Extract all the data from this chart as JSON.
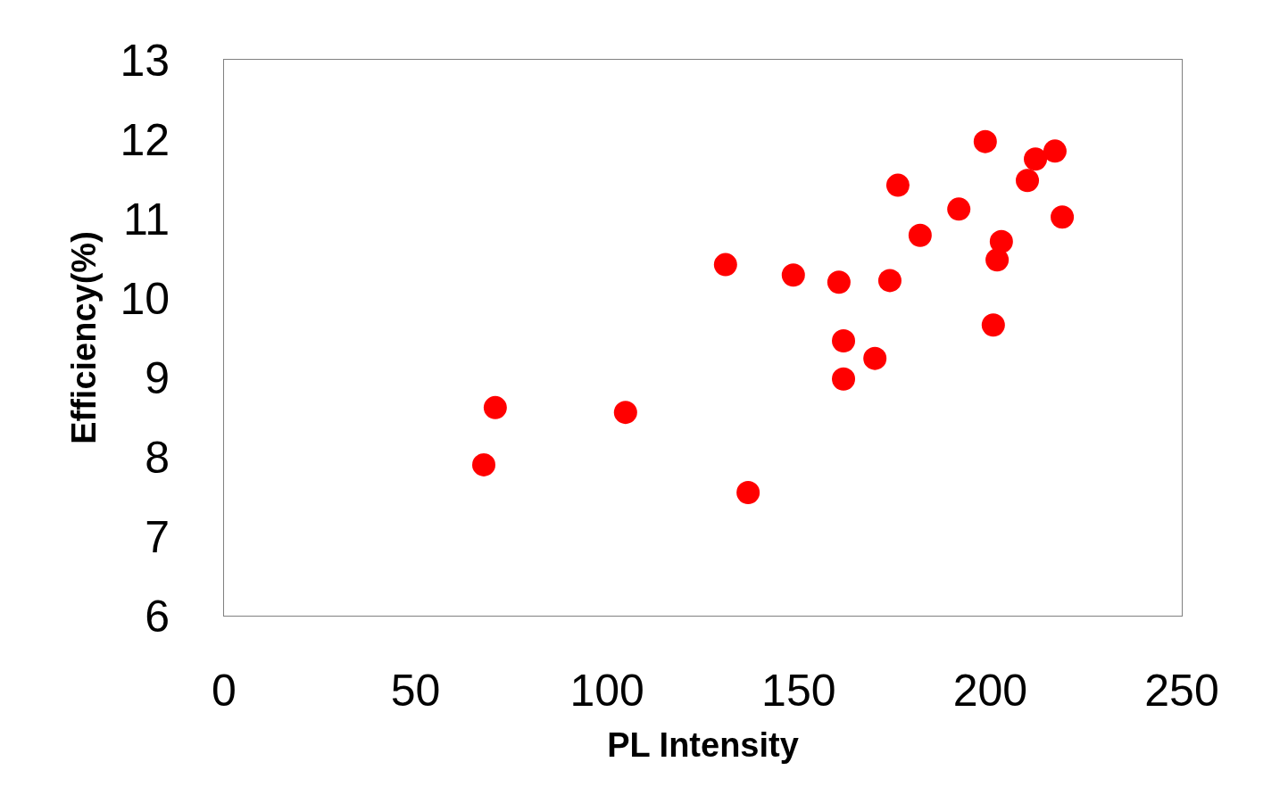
{
  "chart_data": {
    "type": "scatter",
    "xlabel": "PL Intensity",
    "ylabel": "Efficiency(%)",
    "x": [
      70.8,
      67.8,
      104.8,
      130.9,
      136.8,
      148.6,
      160.5,
      161.7,
      161.7,
      173.8,
      169.9,
      175.9,
      181.7,
      191.8,
      198.7,
      200.8,
      201.8,
      202.9,
      209.7,
      211.8,
      216.9,
      218.8
    ],
    "values": [
      8.62,
      7.9,
      8.56,
      10.42,
      7.55,
      10.29,
      10.2,
      9.46,
      8.98,
      10.22,
      9.24,
      11.42,
      10.79,
      11.12,
      11.97,
      9.66,
      10.48,
      10.71,
      11.48,
      11.75,
      11.85,
      11.02
    ],
    "color": "#ff0000",
    "marker": "circle",
    "xlim": [
      0,
      250
    ],
    "xticks": [
      0,
      50,
      100,
      150,
      200,
      250
    ],
    "ylim": [
      6,
      13
    ],
    "yticks": [
      6,
      7,
      8,
      9,
      10,
      11,
      12,
      13
    ]
  }
}
